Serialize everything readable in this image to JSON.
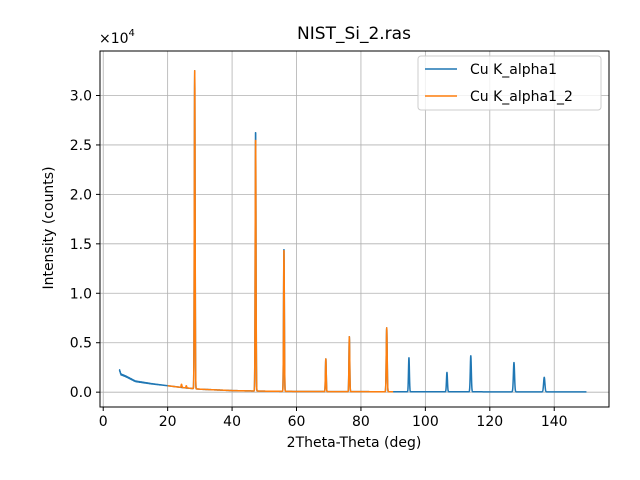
{
  "chart_data": {
    "type": "line",
    "title": "NIST_Si_2.ras",
    "xlabel": "2Theta-Theta (deg)",
    "ylabel": "Intensity (counts)",
    "y_multiplier_text": "×10",
    "y_multiplier_exponent": "4",
    "xlim": [
      -1,
      157
    ],
    "ylim": [
      -1500,
      34500
    ],
    "x_ticks": [
      0,
      20,
      40,
      60,
      80,
      100,
      120,
      140
    ],
    "x_tick_labels": [
      "0",
      "20",
      "40",
      "60",
      "80",
      "100",
      "120",
      "140"
    ],
    "y_ticks": [
      0,
      5000,
      10000,
      15000,
      20000,
      25000,
      30000
    ],
    "y_tick_labels": [
      "0.0",
      "0.5",
      "1.0",
      "1.5",
      "2.0",
      "2.5",
      "3.0"
    ],
    "grid": true,
    "legend_position": "top-right",
    "series": [
      {
        "name": "Cu K_alpha1",
        "color": "#1f77b4",
        "x_range": [
          5,
          150
        ],
        "baseline": [
          [
            5,
            2300
          ],
          [
            5.5,
            1800
          ],
          [
            7,
            1600
          ],
          [
            10,
            1100
          ],
          [
            15,
            850
          ],
          [
            20,
            650
          ],
          [
            25,
            450
          ],
          [
            30,
            300
          ],
          [
            40,
            160
          ],
          [
            50,
            100
          ],
          [
            60,
            70
          ],
          [
            80,
            50
          ],
          [
            100,
            40
          ],
          [
            120,
            35
          ],
          [
            150,
            30
          ]
        ],
        "peaks": [
          {
            "x": 28.4,
            "y": 32500,
            "w": 0.12
          },
          {
            "x": 47.3,
            "y": 26600,
            "w": 0.12
          },
          {
            "x": 56.1,
            "y": 14600,
            "w": 0.12
          },
          {
            "x": 69.1,
            "y": 3400,
            "w": 0.12
          },
          {
            "x": 76.4,
            "y": 5600,
            "w": 0.12
          },
          {
            "x": 88.0,
            "y": 6500,
            "w": 0.14
          },
          {
            "x": 94.9,
            "y": 3500,
            "w": 0.14
          },
          {
            "x": 106.7,
            "y": 2000,
            "w": 0.15
          },
          {
            "x": 114.1,
            "y": 3700,
            "w": 0.16
          },
          {
            "x": 127.5,
            "y": 3000,
            "w": 0.18
          },
          {
            "x": 136.9,
            "y": 1500,
            "w": 0.2
          }
        ]
      },
      {
        "name": "Cu K_alpha1_2",
        "color": "#ff7f0e",
        "x_range": [
          20,
          90
        ],
        "baseline": [
          [
            20,
            650
          ],
          [
            25,
            450
          ],
          [
            30,
            300
          ],
          [
            40,
            160
          ],
          [
            50,
            100
          ],
          [
            60,
            70
          ],
          [
            80,
            50
          ],
          [
            90,
            45
          ]
        ],
        "peaks": [
          {
            "x": 24.3,
            "y": 800,
            "w": 0.12
          },
          {
            "x": 25.8,
            "y": 650,
            "w": 0.12
          },
          {
            "x": 28.4,
            "y": 32500,
            "w": 0.12
          },
          {
            "x": 47.3,
            "y": 25800,
            "w": 0.12
          },
          {
            "x": 56.1,
            "y": 14500,
            "w": 0.12
          },
          {
            "x": 69.1,
            "y": 3400,
            "w": 0.12
          },
          {
            "x": 76.4,
            "y": 5600,
            "w": 0.12
          },
          {
            "x": 88.0,
            "y": 6500,
            "w": 0.14
          }
        ]
      }
    ]
  }
}
